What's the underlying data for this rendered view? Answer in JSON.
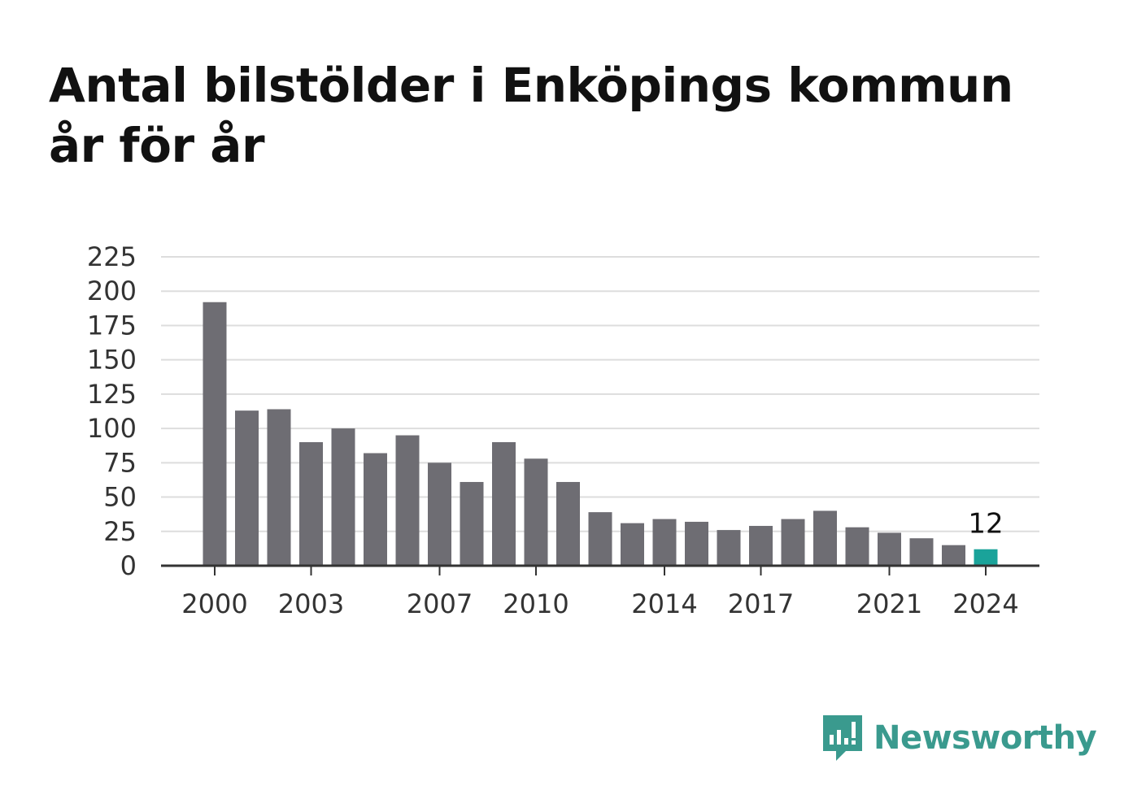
{
  "chart_data": {
    "type": "bar",
    "title": "Antal bilstölder i Enköpings kommun år för år",
    "xlabel": "",
    "ylabel": "",
    "categories": [
      "2000",
      "2001",
      "2002",
      "2003",
      "2004",
      "2005",
      "2006",
      "2007",
      "2008",
      "2009",
      "2010",
      "2011",
      "2012",
      "2013",
      "2014",
      "2015",
      "2016",
      "2017",
      "2018",
      "2019",
      "2020",
      "2021",
      "2022",
      "2023",
      "2024"
    ],
    "values": [
      192,
      113,
      114,
      90,
      100,
      82,
      95,
      75,
      61,
      90,
      78,
      61,
      39,
      31,
      34,
      32,
      26,
      29,
      34,
      40,
      28,
      24,
      20,
      15,
      12
    ],
    "x_tick_labels": [
      "2000",
      "2003",
      "2007",
      "2010",
      "2014",
      "2017",
      "2021",
      "2024"
    ],
    "y_ticks": [
      0,
      25,
      50,
      75,
      100,
      125,
      150,
      175,
      200,
      225
    ],
    "ylim": [
      0,
      225
    ],
    "grid": true,
    "legend": "none",
    "annotation": {
      "category": "2024",
      "text": "12"
    },
    "colors": {
      "bar": "#6e6d73",
      "highlight": "#1aa39a",
      "grid": "#dddddd",
      "axis": "#333333"
    }
  },
  "logo": {
    "text": "Newsworthy",
    "icon": "newsworthy-logo-icon",
    "color": "#3a9a8e"
  }
}
